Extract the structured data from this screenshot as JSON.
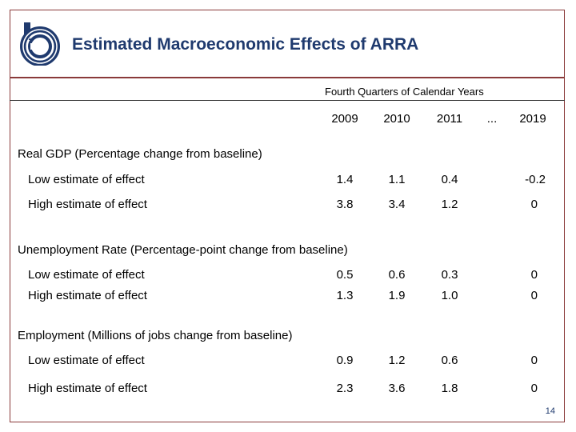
{
  "slide": {
    "title": "Estimated Macroeconomic Effects of ARRA",
    "subtitle": "Fourth Quarters of Calendar Years",
    "page_number": "14",
    "colors": {
      "title": "#1f3a6e",
      "frame": "#8a3a3a",
      "logo": "#1f3a6e"
    }
  },
  "table": {
    "years": [
      "2009",
      "2010",
      "2011",
      "...",
      "2019"
    ],
    "sections": [
      {
        "title": "Real GDP (Percentage change from baseline)",
        "rows": [
          {
            "label": "Low estimate of effect",
            "values": [
              "1.4",
              "1.1",
              "0.4",
              "",
              "-0.2"
            ]
          },
          {
            "label": "High estimate of effect",
            "values": [
              "3.8",
              "3.4",
              "1.2",
              "",
              "0"
            ]
          }
        ]
      },
      {
        "title": "Unemployment Rate (Percentage-point change from baseline)",
        "rows": [
          {
            "label": "Low estimate of effect",
            "values": [
              "0.5",
              "0.6",
              "0.3",
              "",
              "0"
            ]
          },
          {
            "label": "High estimate of effect",
            "values": [
              "1.3",
              "1.9",
              "1.0",
              "",
              "0"
            ]
          }
        ]
      },
      {
        "title": "Employment (Millions of jobs change from baseline)",
        "rows": [
          {
            "label": "Low estimate of effect",
            "values": [
              "0.9",
              "1.2",
              "0.6",
              "",
              "0"
            ]
          },
          {
            "label": "High estimate of effect",
            "values": [
              "2.3",
              "3.6",
              "1.8",
              "",
              "0"
            ]
          }
        ]
      }
    ]
  }
}
